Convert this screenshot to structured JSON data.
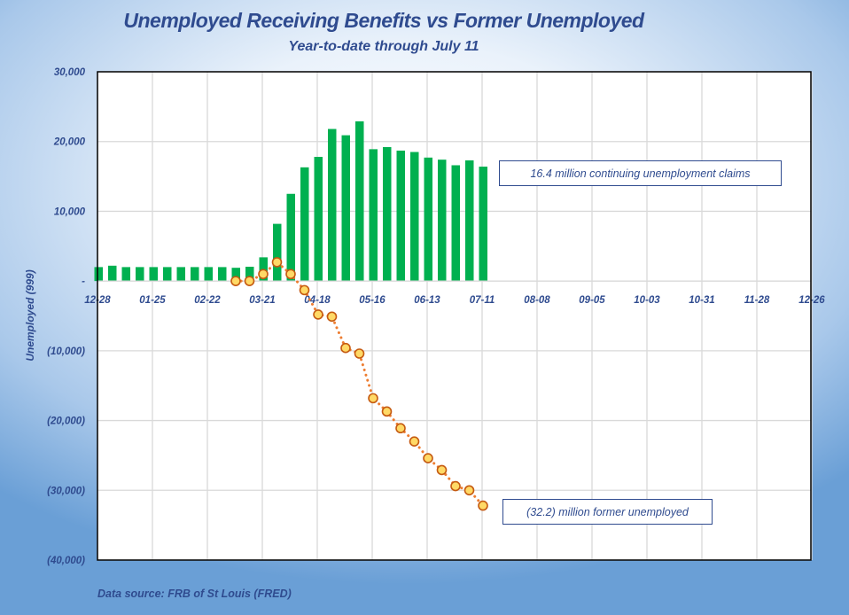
{
  "chart_data": {
    "type": "bar+line",
    "title": "Unemployed Receiving Benefits vs Former Unemployed",
    "subtitle": "Year-to-date through July 11",
    "ylabel": "Unemployed (999)",
    "ylim": [
      -40000,
      30000
    ],
    "yticks": [
      30000,
      20000,
      10000,
      0,
      -10000,
      -20000,
      -30000,
      -40000
    ],
    "ytick_labels": [
      "30,000",
      "20,000",
      "10,000",
      "-",
      "(10,000)",
      "(20,000)",
      "(30,000)",
      "(40,000)"
    ],
    "xtick_labels": [
      "12-28",
      "01-25",
      "02-22",
      "03-21",
      "04-18",
      "05-16",
      "06-13",
      "07-11",
      "08-08",
      "09-05",
      "10-03",
      "10-31",
      "11-28",
      "12-26"
    ],
    "grid": true,
    "categories": [
      "12-28",
      "01-04",
      "01-11",
      "01-18",
      "01-25",
      "02-01",
      "02-08",
      "02-15",
      "02-22",
      "02-29",
      "03-07",
      "03-14",
      "03-21",
      "03-28",
      "04-04",
      "04-11",
      "04-18",
      "04-25",
      "05-02",
      "05-09",
      "05-16",
      "05-23",
      "05-30",
      "06-06",
      "06-13",
      "06-20",
      "06-27",
      "07-04",
      "07-11"
    ],
    "series": [
      {
        "type": "bar",
        "color": "#00b050",
        "values": [
          2000,
          2200,
          2000,
          2000,
          2000,
          2000,
          2000,
          2000,
          2000,
          2000,
          1900,
          2050,
          3400,
          8200,
          12500,
          16300,
          17800,
          21800,
          20900,
          22900,
          18900,
          19200,
          18700,
          18500,
          17700,
          17400,
          16600,
          17300,
          16400
        ]
      },
      {
        "type": "line",
        "color": "#ed7d31",
        "marker_fill": "#ffd966",
        "line_style": "dotted",
        "values": [
          null,
          null,
          null,
          null,
          null,
          null,
          null,
          null,
          null,
          null,
          0,
          0,
          1000,
          2700,
          1000,
          -1300,
          -4800,
          -5100,
          -9600,
          -10400,
          -16800,
          -18700,
          -21100,
          -23000,
          -25400,
          -27100,
          -29400,
          -30000,
          -32200
        ]
      }
    ],
    "annotations": [
      "16.4 million continuing unemployment claims",
      "(32.2) million former unemployed"
    ],
    "source": "Data source: FRB of St Louis (FRED)"
  }
}
